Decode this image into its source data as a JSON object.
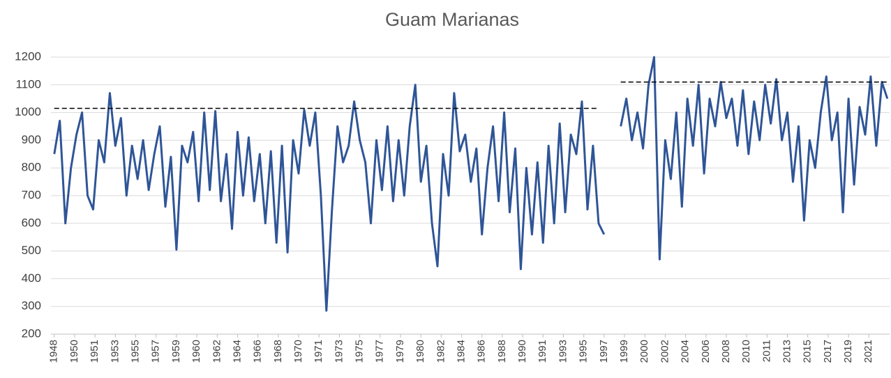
{
  "chart_data": {
    "type": "line",
    "title": "Guam Marianas",
    "x": [
      1948.0,
      1948.5,
      1949.0,
      1949.5,
      1950.0,
      1950.5,
      1951.0,
      1951.5,
      1952.0,
      1952.5,
      1953.0,
      1953.5,
      1954.0,
      1954.5,
      1955.0,
      1955.5,
      1956.0,
      1956.5,
      1957.0,
      1957.5,
      1958.0,
      1958.5,
      1959.0,
      1959.5,
      1960.0,
      1960.5,
      1961.0,
      1961.5,
      1962.0,
      1962.5,
      1963.0,
      1963.5,
      1964.0,
      1964.5,
      1965.0,
      1965.5,
      1966.0,
      1966.5,
      1967.0,
      1967.5,
      1968.0,
      1968.5,
      1969.0,
      1969.5,
      1970.0,
      1970.5,
      1971.0,
      1971.5,
      1972.0,
      1972.5,
      1973.0,
      1973.5,
      1974.0,
      1974.5,
      1975.0,
      1975.5,
      1976.0,
      1976.5,
      1977.0,
      1977.5,
      1978.0,
      1978.5,
      1979.0,
      1979.5,
      1980.0,
      1980.5,
      1981.0,
      1981.5,
      1982.0,
      1982.5,
      1983.0,
      1983.5,
      1984.0,
      1984.5,
      1985.0,
      1985.5,
      1986.0,
      1986.5,
      1987.0,
      1987.5,
      1988.0,
      1988.5,
      1989.0,
      1989.5,
      1990.0,
      1990.5,
      1991.0,
      1991.5,
      1992.0,
      1992.5,
      1993.0,
      1993.5,
      1994.0,
      1994.5,
      1995.0,
      1995.5,
      1996.0,
      1996.5,
      1997.0,
      1997.5,
      1998.25,
      1999.0,
      1999.5,
      2000.0,
      2000.5,
      2001.0,
      2001.5,
      2002.0,
      2002.5,
      2003.0,
      2003.5,
      2004.0,
      2004.5,
      2005.0,
      2005.5,
      2006.0,
      2006.5,
      2007.0,
      2007.5,
      2008.0,
      2008.5,
      2009.0,
      2009.5,
      2010.0,
      2010.5,
      2011.0,
      2011.5,
      2012.0,
      2012.5,
      2013.0,
      2013.5,
      2014.0,
      2014.5,
      2015.0,
      2015.5,
      2016.0,
      2016.5,
      2017.0,
      2017.5,
      2018.0,
      2018.5,
      2019.0,
      2019.5,
      2020.0,
      2020.5,
      2021.0,
      2021.5,
      2022.0,
      2022.5,
      2023.0
    ],
    "series": [
      {
        "color": "#2f5597",
        "values": [
          850,
          970,
          600,
          800,
          920,
          1000,
          700,
          650,
          900,
          820,
          1070,
          880,
          980,
          700,
          880,
          760,
          900,
          720,
          850,
          950,
          660,
          840,
          505,
          880,
          820,
          930,
          680,
          1000,
          720,
          1005,
          680,
          850,
          580,
          930,
          700,
          910,
          680,
          850,
          600,
          860,
          530,
          880,
          495,
          900,
          780,
          1010,
          880,
          1000,
          700,
          285,
          650,
          950,
          820,
          880,
          1040,
          900,
          820,
          600,
          900,
          720,
          950,
          680,
          900,
          700,
          950,
          1100,
          750,
          880,
          600,
          445,
          850,
          700,
          1070,
          860,
          920,
          750,
          870,
          560,
          800,
          950,
          680,
          1000,
          640,
          870,
          435,
          800,
          560,
          820,
          530,
          880,
          600,
          960,
          640,
          920,
          850,
          1040,
          650,
          880,
          600,
          560,
          null,
          950,
          1050,
          900,
          1000,
          870,
          1100,
          1200,
          470,
          900,
          760,
          1000,
          660,
          1050,
          880,
          1100,
          780,
          1050,
          950,
          1110,
          980,
          1050,
          880,
          1080,
          850,
          1040,
          900,
          1100,
          960,
          1120,
          900,
          1000,
          750,
          950,
          610,
          900,
          800,
          1000,
          1130,
          900,
          1000,
          640,
          1050,
          740,
          1020,
          920,
          1130,
          880,
          1110,
          1050
        ]
      }
    ],
    "reference_lines": [
      {
        "value": 1015,
        "x": [
          1948,
          1997
        ]
      },
      {
        "value": 1110,
        "x": [
          1999,
          2023
        ]
      }
    ],
    "xlim": [
      1947.7,
      2023.2
    ],
    "xticks": [
      {
        "value": 1948,
        "label": "1948"
      },
      {
        "value": 1949.83,
        "label": "1950"
      },
      {
        "value": 1951.67,
        "label": "1951"
      },
      {
        "value": 1953.5,
        "label": "1953"
      },
      {
        "value": 1955.33,
        "label": "1955"
      },
      {
        "value": 1957.17,
        "label": "1957"
      },
      {
        "value": 1959,
        "label": "1959"
      },
      {
        "value": 1960.83,
        "label": "1960"
      },
      {
        "value": 1962.67,
        "label": "1962"
      },
      {
        "value": 1964.5,
        "label": "1964"
      },
      {
        "value": 1966.33,
        "label": "1966"
      },
      {
        "value": 1968.17,
        "label": "1968"
      },
      {
        "value": 1970,
        "label": "1970"
      },
      {
        "value": 1971.83,
        "label": "1971"
      },
      {
        "value": 1973.67,
        "label": "1973"
      },
      {
        "value": 1975.5,
        "label": "1975"
      },
      {
        "value": 1977.33,
        "label": "1977"
      },
      {
        "value": 1979.17,
        "label": "1979"
      },
      {
        "value": 1981,
        "label": "1980"
      },
      {
        "value": 1982.83,
        "label": "1982"
      },
      {
        "value": 1984.67,
        "label": "1984"
      },
      {
        "value": 1986.5,
        "label": "1986"
      },
      {
        "value": 1988.33,
        "label": "1988"
      },
      {
        "value": 1990.17,
        "label": "1990"
      },
      {
        "value": 1992,
        "label": "1991"
      },
      {
        "value": 1993.83,
        "label": "1993"
      },
      {
        "value": 1995.67,
        "label": "1995"
      },
      {
        "value": 1997.5,
        "label": "1997"
      },
      {
        "value": 1999.33,
        "label": "1999"
      },
      {
        "value": 2001.17,
        "label": "2000"
      },
      {
        "value": 2003,
        "label": "2002"
      },
      {
        "value": 2004.83,
        "label": "2004"
      },
      {
        "value": 2006.67,
        "label": "2006"
      },
      {
        "value": 2008.5,
        "label": "2008"
      },
      {
        "value": 2010.33,
        "label": "2010"
      },
      {
        "value": 2012.17,
        "label": "2011"
      },
      {
        "value": 2014,
        "label": "2013"
      },
      {
        "value": 2015.83,
        "label": "2015"
      },
      {
        "value": 2017.67,
        "label": "2017"
      },
      {
        "value": 2019.5,
        "label": "2019"
      },
      {
        "value": 2021.33,
        "label": "2021"
      }
    ],
    "ylim": [
      200,
      1200
    ],
    "yticks": [
      200,
      300,
      400,
      500,
      600,
      700,
      800,
      900,
      1000,
      1100,
      1200
    ],
    "grid": true
  }
}
